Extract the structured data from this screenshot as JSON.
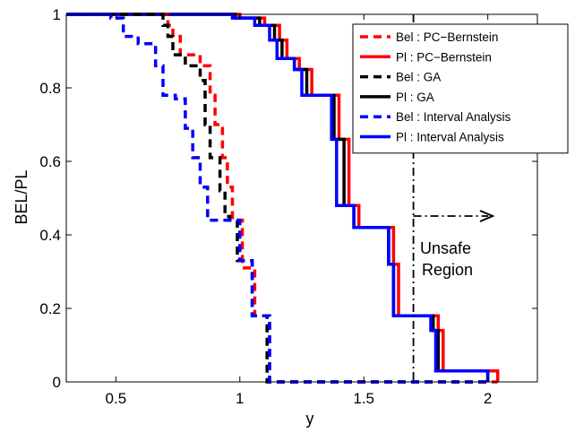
{
  "chart_data": {
    "type": "line",
    "title": "",
    "xlabel": "y",
    "ylabel": "BEL/PL",
    "xlim": [
      0.3,
      2.2
    ],
    "ylim": [
      0,
      1
    ],
    "xticks": [
      0.5,
      1,
      1.5,
      2
    ],
    "yticks": [
      0,
      0.2,
      0.4,
      0.6,
      0.8,
      1
    ],
    "xtick_labels": [
      "0.5",
      "1",
      "1.5",
      "2"
    ],
    "ytick_labels": [
      "0",
      "0.2",
      "0.4",
      "0.6",
      "0.8",
      "1"
    ],
    "grid": false,
    "legend_position": "top-right",
    "series": [
      {
        "name": "Bel : PC−Bernstein",
        "color": "#ff0000",
        "dash": "dashed",
        "x": [
          0.3,
          0.71,
          0.71,
          0.73,
          0.73,
          0.76,
          0.76,
          0.84,
          0.84,
          0.88,
          0.88,
          0.9,
          0.9,
          0.93,
          0.93,
          0.95,
          0.95,
          0.97,
          0.97,
          1.01,
          1.01,
          1.06,
          1.06,
          1.12,
          1.12,
          2.04
        ],
        "y": [
          1,
          1,
          0.97,
          0.97,
          0.94,
          0.94,
          0.89,
          0.89,
          0.86,
          0.86,
          0.78,
          0.78,
          0.7,
          0.7,
          0.61,
          0.61,
          0.53,
          0.53,
          0.44,
          0.44,
          0.31,
          0.31,
          0.18,
          0.18,
          0,
          0
        ]
      },
      {
        "name": "Pl : PC−Bernstein",
        "color": "#ff0000",
        "dash": "solid",
        "x": [
          0.3,
          1.0,
          1.0,
          1.1,
          1.1,
          1.16,
          1.16,
          1.19,
          1.19,
          1.24,
          1.24,
          1.29,
          1.29,
          1.4,
          1.4,
          1.44,
          1.44,
          1.48,
          1.48,
          1.62,
          1.62,
          1.64,
          1.64,
          1.8,
          1.8,
          1.82,
          1.82,
          2.04,
          2.04
        ],
        "y": [
          1,
          1,
          0.99,
          0.99,
          0.97,
          0.97,
          0.93,
          0.93,
          0.88,
          0.88,
          0.85,
          0.85,
          0.78,
          0.78,
          0.66,
          0.66,
          0.48,
          0.48,
          0.42,
          0.42,
          0.32,
          0.32,
          0.18,
          0.18,
          0.14,
          0.14,
          0.03,
          0.03,
          0
        ]
      },
      {
        "name": "Bel : GA",
        "color": "#000000",
        "dash": "dashed",
        "x": [
          0.3,
          0.69,
          0.69,
          0.71,
          0.71,
          0.73,
          0.73,
          0.78,
          0.78,
          0.84,
          0.84,
          0.86,
          0.86,
          0.88,
          0.88,
          0.92,
          0.92,
          0.94,
          0.94,
          0.96,
          0.96,
          0.99,
          0.99,
          1.05,
          1.05,
          1.11,
          1.11,
          2.0
        ],
        "y": [
          1,
          1,
          0.97,
          0.97,
          0.94,
          0.94,
          0.89,
          0.89,
          0.86,
          0.86,
          0.82,
          0.82,
          0.7,
          0.7,
          0.61,
          0.61,
          0.52,
          0.52,
          0.45,
          0.45,
          0.44,
          0.44,
          0.33,
          0.33,
          0.18,
          0.18,
          0,
          0
        ]
      },
      {
        "name": "Pl : GA",
        "color": "#000000",
        "dash": "solid",
        "x": [
          0.3,
          0.98,
          0.98,
          1.08,
          1.08,
          1.14,
          1.14,
          1.17,
          1.17,
          1.22,
          1.22,
          1.27,
          1.27,
          1.38,
          1.38,
          1.42,
          1.42,
          1.46,
          1.46,
          1.6,
          1.6,
          1.62,
          1.62,
          1.78,
          1.78,
          1.8,
          1.8,
          2.0,
          2.0
        ],
        "y": [
          1,
          1,
          0.99,
          0.99,
          0.97,
          0.97,
          0.93,
          0.93,
          0.88,
          0.88,
          0.85,
          0.85,
          0.78,
          0.78,
          0.66,
          0.66,
          0.48,
          0.48,
          0.42,
          0.42,
          0.32,
          0.32,
          0.18,
          0.18,
          0.14,
          0.14,
          0.03,
          0.03,
          0
        ]
      },
      {
        "name": "Bel : Interval Analysis",
        "color": "#0000ff",
        "dash": "dashed",
        "x": [
          0.3,
          0.48,
          0.48,
          0.53,
          0.53,
          0.59,
          0.59,
          0.66,
          0.66,
          0.69,
          0.69,
          0.74,
          0.74,
          0.78,
          0.78,
          0.81,
          0.81,
          0.84,
          0.84,
          0.87,
          0.87,
          0.91,
          0.91,
          1.0,
          1.0,
          1.05,
          1.05,
          1.12,
          1.12,
          2.0
        ],
        "y": [
          1,
          1,
          0.99,
          0.99,
          0.94,
          0.94,
          0.92,
          0.92,
          0.86,
          0.86,
          0.78,
          0.78,
          0.77,
          0.77,
          0.69,
          0.69,
          0.61,
          0.61,
          0.53,
          0.53,
          0.44,
          0.44,
          0.44,
          0.44,
          0.33,
          0.33,
          0.18,
          0.18,
          0,
          0
        ]
      },
      {
        "name": "Pl : Interval Analysis",
        "color": "#0000ff",
        "dash": "solid",
        "x": [
          0.3,
          0.97,
          0.97,
          1.06,
          1.06,
          1.12,
          1.12,
          1.15,
          1.15,
          1.22,
          1.22,
          1.25,
          1.25,
          1.37,
          1.37,
          1.39,
          1.39,
          1.46,
          1.46,
          1.6,
          1.6,
          1.62,
          1.62,
          1.77,
          1.77,
          1.79,
          1.79,
          2.0,
          2.0
        ],
        "y": [
          1,
          1,
          0.99,
          0.99,
          0.97,
          0.97,
          0.93,
          0.93,
          0.88,
          0.88,
          0.85,
          0.85,
          0.78,
          0.78,
          0.66,
          0.66,
          0.48,
          0.48,
          0.42,
          0.42,
          0.32,
          0.32,
          0.18,
          0.18,
          0.14,
          0.14,
          0.03,
          0.03,
          0
        ]
      }
    ],
    "annotations": {
      "threshold_x": 1.7,
      "region_text_line1": "Unsafe",
      "region_text_line2": "Region"
    }
  }
}
